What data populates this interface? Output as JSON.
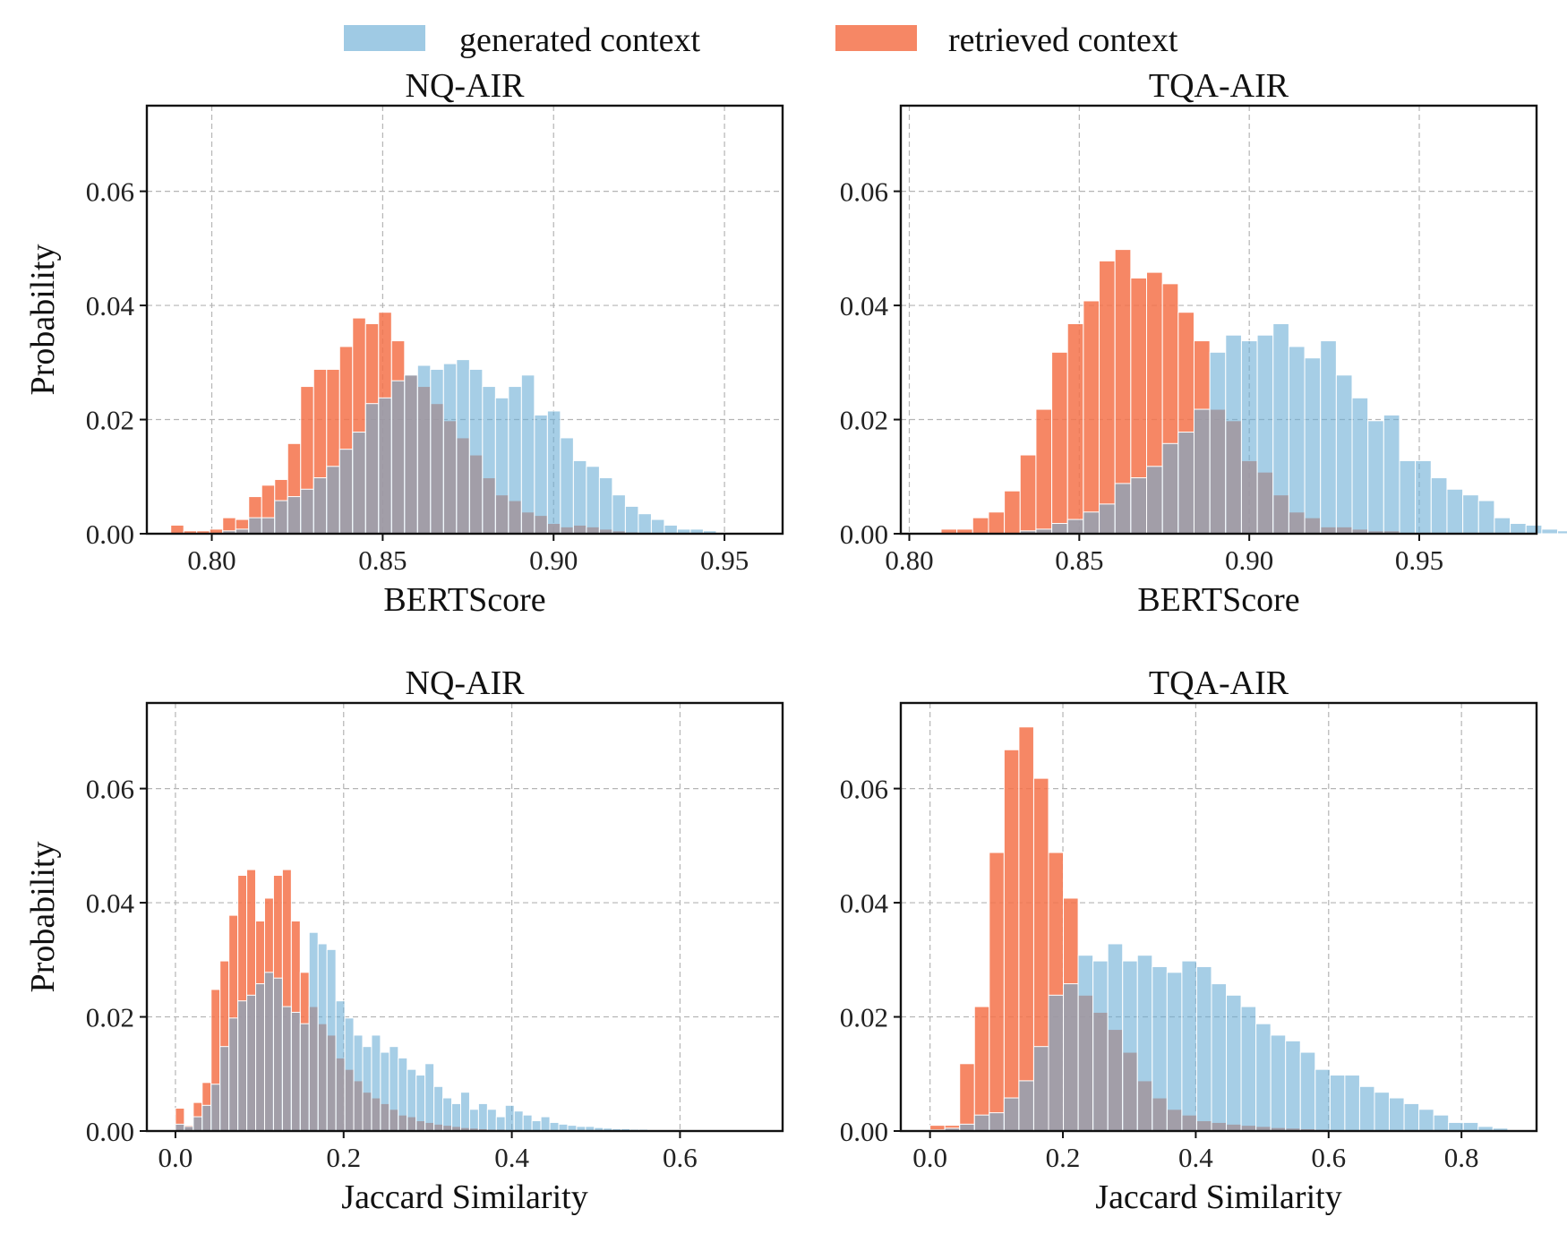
{
  "legend": {
    "items": [
      {
        "label": "generated context",
        "color": "#6baed6"
      },
      {
        "label": "retrieved context",
        "color": "#f4724a"
      }
    ]
  },
  "colors": {
    "generated": "#6baed6",
    "retrieved": "#f4724a",
    "overlap_opacity": 0.6
  },
  "chart_data": [
    {
      "type": "bar",
      "title": "NQ-AIR",
      "xlabel": "BERTScore",
      "ylabel": "Probability",
      "xlim": [
        0.781,
        0.967
      ],
      "ylim": [
        0,
        0.075
      ],
      "xticks": [
        0.8,
        0.85,
        0.9,
        0.95
      ],
      "xtick_labels": [
        "0.80",
        "0.85",
        "0.90",
        "0.95"
      ],
      "yticks": [
        0.0,
        0.02,
        0.04,
        0.06
      ],
      "ytick_labels": [
        "0.00",
        "0.02",
        "0.04",
        "0.06"
      ],
      "grid": true,
      "x_start": 0.788,
      "bin_width": 0.0038,
      "series": [
        {
          "name": "retrieved context",
          "values": [
            0.0015,
            0.0005,
            0.0005,
            0.0008,
            0.0028,
            0.0025,
            0.0065,
            0.0085,
            0.0095,
            0.0158,
            0.0258,
            0.0288,
            0.0288,
            0.0328,
            0.0378,
            0.0368,
            0.0388,
            0.0338,
            0.0278,
            0.0258,
            0.0228,
            0.0198,
            0.0168,
            0.0138,
            0.0098,
            0.0068,
            0.0058,
            0.0038,
            0.0032,
            0.0018,
            0.0012,
            0.0015,
            0.0012,
            0.0008,
            0.0005,
            0.0003,
            0.0002,
            0.0001,
            0,
            0,
            0,
            0,
            0,
            0,
            0,
            0,
            0,
            0,
            0
          ]
        },
        {
          "name": "generated context",
          "values": [
            0,
            0,
            0,
            0,
            0.0005,
            0.0008,
            0.0028,
            0.0028,
            0.0058,
            0.0065,
            0.0078,
            0.0098,
            0.0118,
            0.0148,
            0.0178,
            0.0228,
            0.0238,
            0.0268,
            0.0278,
            0.0295,
            0.0288,
            0.0298,
            0.0305,
            0.0288,
            0.0258,
            0.0238,
            0.0258,
            0.0278,
            0.0208,
            0.0215,
            0.0168,
            0.0128,
            0.0118,
            0.0098,
            0.0068,
            0.0048,
            0.0035,
            0.0025,
            0.0015,
            0.0008,
            0.0008,
            0.0005,
            0,
            0,
            0,
            0,
            0,
            0,
            0
          ]
        }
      ]
    },
    {
      "type": "bar",
      "title": "TQA-AIR",
      "xlabel": "BERTScore",
      "ylabel": "",
      "xlim": [
        0.7975,
        0.9845
      ],
      "ylim": [
        0,
        0.075
      ],
      "xticks": [
        0.8,
        0.85,
        0.9,
        0.95
      ],
      "xtick_labels": [
        "0.80",
        "0.85",
        "0.90",
        "0.95"
      ],
      "yticks": [
        0.0,
        0.02,
        0.04,
        0.06
      ],
      "ytick_labels": [
        "0.00",
        "0.02",
        "0.04",
        "0.06"
      ],
      "grid": true,
      "x_start": 0.8047,
      "bin_width": 0.00465,
      "series": [
        {
          "name": "retrieved context",
          "values": [
            0,
            0.0008,
            0.0008,
            0.0028,
            0.0038,
            0.0075,
            0.0138,
            0.0218,
            0.0318,
            0.0368,
            0.0408,
            0.0478,
            0.0498,
            0.0448,
            0.0458,
            0.0438,
            0.0388,
            0.0338,
            0.0218,
            0.0198,
            0.0128,
            0.0108,
            0.0068,
            0.0038,
            0.0028,
            0.0012,
            0.0012,
            0.0008,
            0.0005,
            0.0005,
            0.0002,
            0.0001,
            0,
            0,
            0,
            0,
            0,
            0,
            0,
            0,
            0,
            0,
            0
          ]
        },
        {
          "name": "generated context",
          "values": [
            0,
            0,
            0,
            0,
            0,
            0,
            0.0005,
            0.0008,
            0.0018,
            0.0025,
            0.0038,
            0.0052,
            0.0088,
            0.0098,
            0.0118,
            0.0158,
            0.0178,
            0.0218,
            0.0318,
            0.0348,
            0.0338,
            0.0348,
            0.0368,
            0.0328,
            0.0308,
            0.0338,
            0.0278,
            0.0238,
            0.0198,
            0.0208,
            0.0128,
            0.0128,
            0.0098,
            0.0078,
            0.0068,
            0.0058,
            0.0028,
            0.0018,
            0.0015,
            0.0008,
            0.0005,
            0.0003,
            0
          ]
        }
      ]
    },
    {
      "type": "bar",
      "title": "NQ-AIR",
      "xlabel": "Jaccard Similarity",
      "ylabel": "Probability",
      "xlim": [
        -0.034,
        0.722
      ],
      "ylim": [
        0,
        0.075
      ],
      "xticks": [
        0.0,
        0.2,
        0.4,
        0.6
      ],
      "xtick_labels": [
        "0.0",
        "0.2",
        "0.4",
        "0.6"
      ],
      "yticks": [
        0.0,
        0.02,
        0.04,
        0.06
      ],
      "ytick_labels": [
        "0.00",
        "0.02",
        "0.04",
        "0.06"
      ],
      "grid": true,
      "x_start": 0.0,
      "bin_width": 0.0106,
      "series": [
        {
          "name": "retrieved context",
          "values": [
            0.004,
            0.001,
            0.005,
            0.0085,
            0.0248,
            0.0298,
            0.0378,
            0.0448,
            0.0458,
            0.0368,
            0.0408,
            0.0448,
            0.0458,
            0.0368,
            0.0278,
            0.0218,
            0.0188,
            0.0168,
            0.0128,
            0.0108,
            0.0088,
            0.0068,
            0.0058,
            0.0048,
            0.0038,
            0.0028,
            0.0025,
            0.0018,
            0.0015,
            0.0012,
            0.001,
            0.0008,
            0.0006,
            0.0005,
            0.0004,
            0.0003,
            0.0003,
            0.0002,
            0.0002,
            0.0001,
            0.0001,
            0.0001,
            0.0001,
            0,
            0,
            0,
            0,
            0,
            0,
            0,
            0,
            0,
            0,
            0,
            0,
            0,
            0,
            0,
            0,
            0,
            0
          ]
        },
        {
          "name": "generated context",
          "values": [
            0.0012,
            0.0008,
            0.0025,
            0.0045,
            0.0082,
            0.0148,
            0.0198,
            0.0228,
            0.0238,
            0.0258,
            0.0278,
            0.0268,
            0.0218,
            0.0208,
            0.0188,
            0.0348,
            0.0328,
            0.0318,
            0.0228,
            0.0198,
            0.0168,
            0.0148,
            0.0168,
            0.0138,
            0.0148,
            0.0128,
            0.0108,
            0.0098,
            0.0118,
            0.0078,
            0.0058,
            0.0048,
            0.0068,
            0.0038,
            0.0048,
            0.0038,
            0.0025,
            0.0045,
            0.0035,
            0.0028,
            0.0018,
            0.0025,
            0.0015,
            0.0012,
            0.001,
            0.0008,
            0.0008,
            0.0006,
            0.0005,
            0.0004,
            0.0004,
            0.0003,
            0.0003,
            0.0002,
            0.0002,
            0.0002,
            0.0001,
            0.0001,
            0.0001,
            0.0001,
            0.0001
          ]
        }
      ]
    },
    {
      "type": "bar",
      "title": "TQA-AIR",
      "xlabel": "Jaccard Similarity",
      "ylabel": "",
      "xlim": [
        -0.044,
        0.913
      ],
      "ylim": [
        0,
        0.075
      ],
      "xticks": [
        0.0,
        0.2,
        0.4,
        0.6,
        0.8
      ],
      "xtick_labels": [
        "0.0",
        "0.2",
        "0.4",
        "0.6",
        "0.8"
      ],
      "yticks": [
        0.0,
        0.02,
        0.04,
        0.06
      ],
      "ytick_labels": [
        "0.00",
        "0.02",
        "0.04",
        "0.06"
      ],
      "grid": true,
      "x_start": 0.0,
      "bin_width": 0.0223,
      "series": [
        {
          "name": "retrieved context",
          "values": [
            0.001,
            0.001,
            0.0118,
            0.0218,
            0.0488,
            0.0668,
            0.0708,
            0.0618,
            0.0488,
            0.0408,
            0.0238,
            0.0208,
            0.0178,
            0.0138,
            0.0088,
            0.0058,
            0.0038,
            0.0028,
            0.0018,
            0.0015,
            0.0012,
            0.001,
            0.0008,
            0.0006,
            0.0005,
            0.0004,
            0.0003,
            0.0002,
            0.0002,
            0.0001,
            0.0001,
            0.0001,
            0.0001,
            0.0001,
            0.0001,
            0.0001,
            0,
            0,
            0
          ]
        },
        {
          "name": "generated context",
          "values": [
            0.0002,
            0.0005,
            0.0012,
            0.0028,
            0.0032,
            0.0058,
            0.0088,
            0.0148,
            0.0238,
            0.0258,
            0.0308,
            0.0298,
            0.0328,
            0.0298,
            0.0308,
            0.0288,
            0.0278,
            0.0298,
            0.0288,
            0.0258,
            0.0238,
            0.0218,
            0.0188,
            0.0168,
            0.0158,
            0.0138,
            0.0108,
            0.0098,
            0.0098,
            0.0078,
            0.0068,
            0.0058,
            0.0048,
            0.0038,
            0.0028,
            0.0015,
            0.0015,
            0.0008,
            0.0005
          ]
        }
      ]
    }
  ]
}
